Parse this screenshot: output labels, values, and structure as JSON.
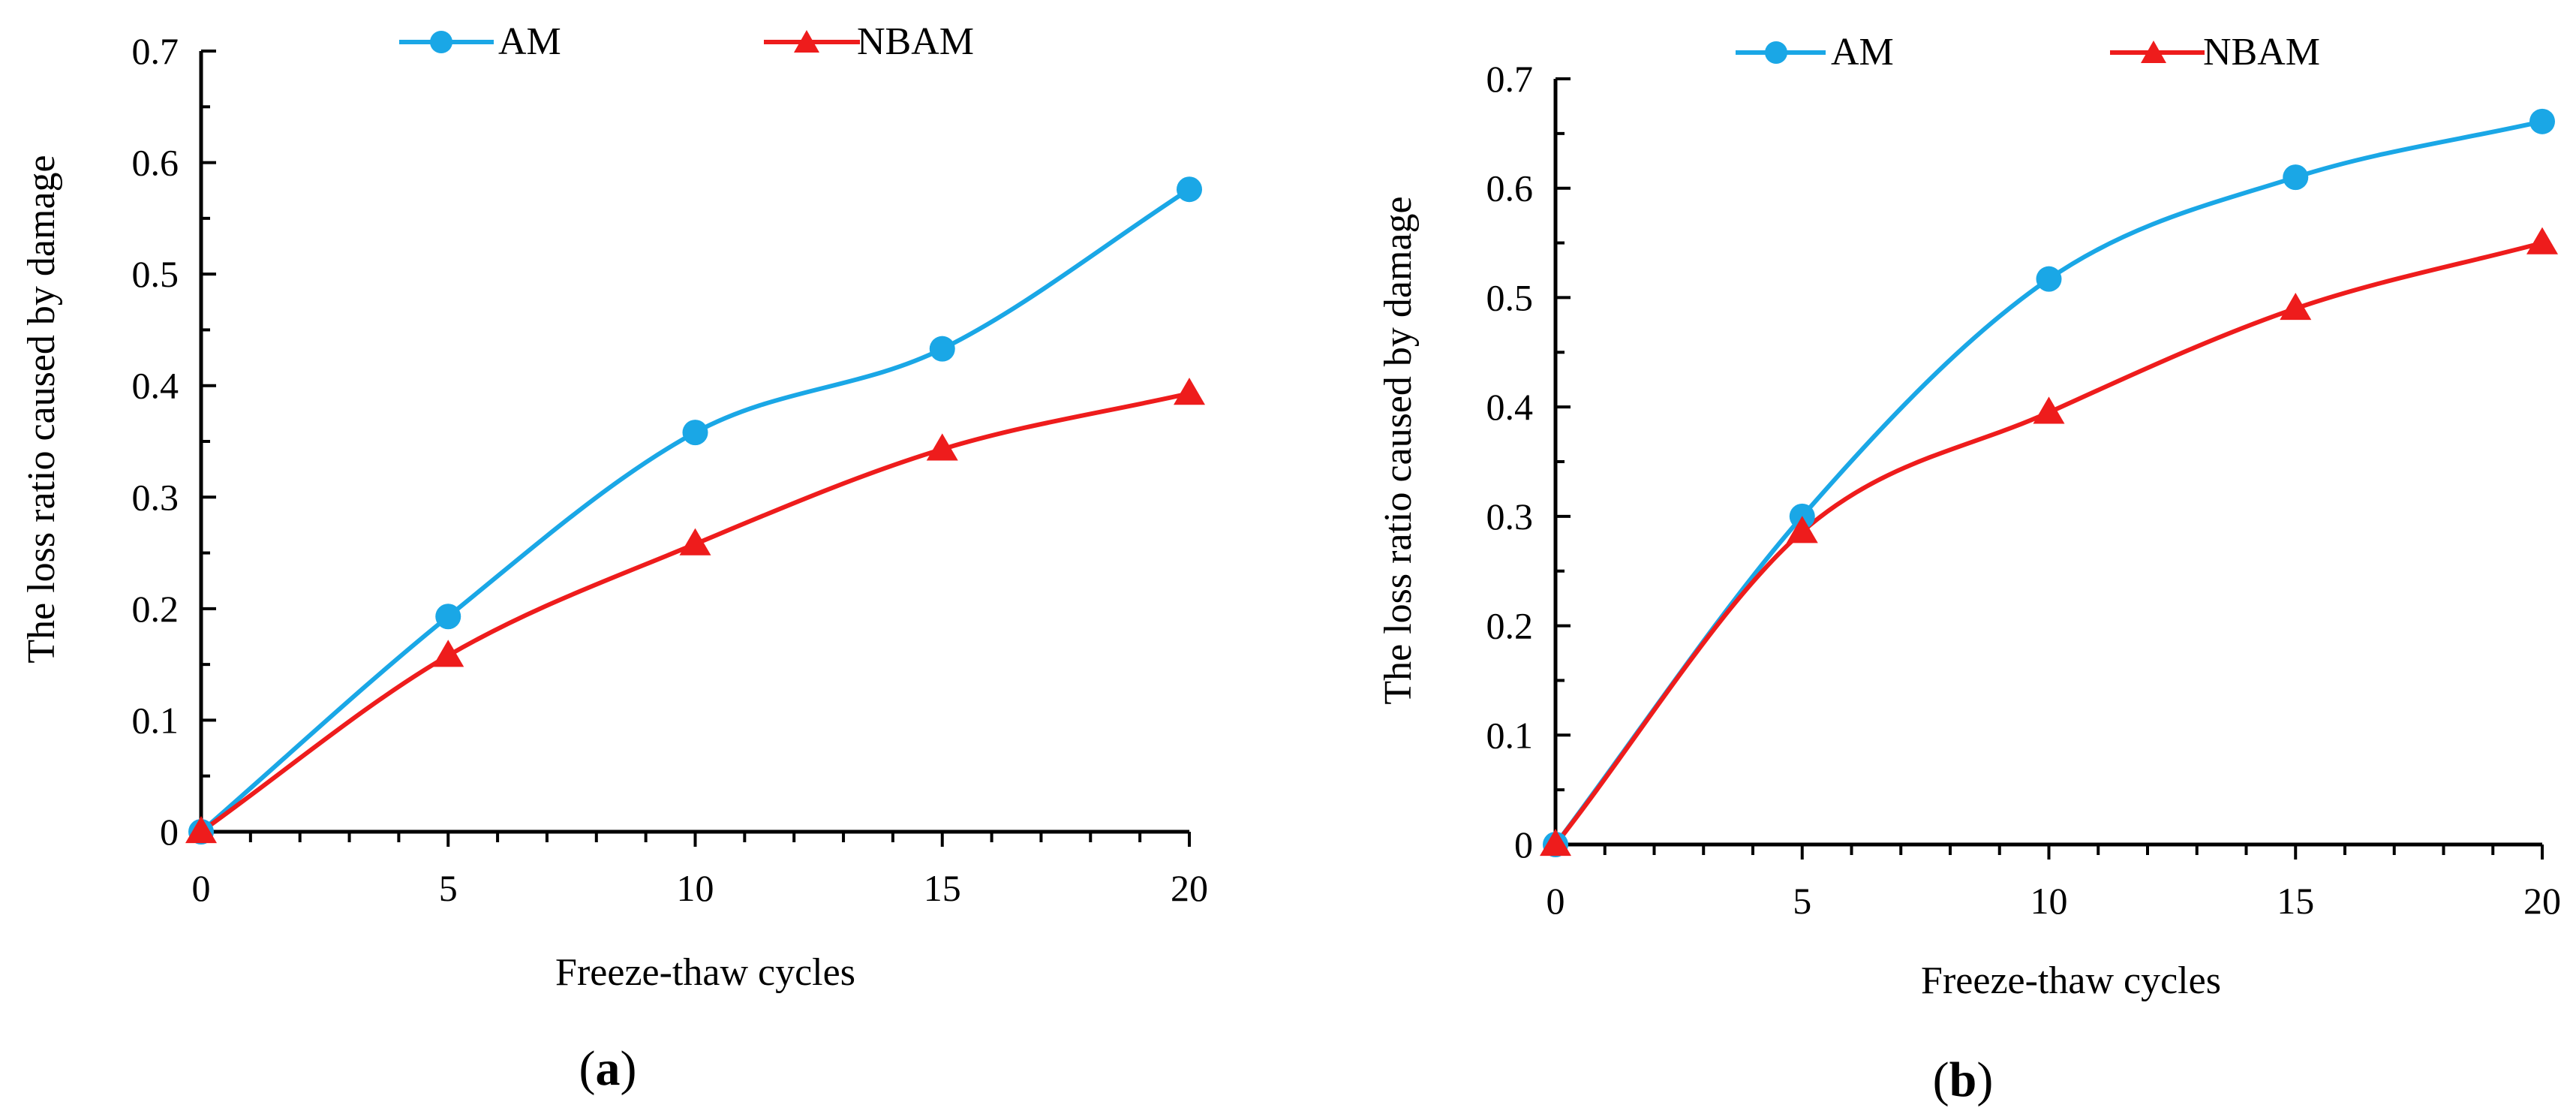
{
  "chart_data": [
    {
      "type": "line",
      "panel_label": "a",
      "xlabel": "Freeze-thaw  cycles",
      "ylabel": "The loss  ratio caused  by damage",
      "xlim": [
        0,
        20
      ],
      "ylim": [
        0,
        0.7
      ],
      "x_ticks": [
        0,
        5,
        10,
        15,
        20
      ],
      "y_ticks": [
        0,
        0.1,
        0.2,
        0.3,
        0.4,
        0.5,
        0.6,
        0.7
      ],
      "x_tick_labels": [
        "0",
        "5",
        "10",
        "15",
        "20"
      ],
      "y_tick_labels": [
        "0",
        "0.1",
        "0.2",
        "0.3",
        "0.4",
        "0.5",
        "0.6",
        "0.7"
      ],
      "x": [
        0,
        5,
        10,
        15,
        20
      ],
      "series": [
        {
          "name": "AM",
          "color": "#1aa7e6",
          "marker": "circle",
          "values": [
            0,
            0.193,
            0.358,
            0.433,
            0.576
          ]
        },
        {
          "name": "NBAM",
          "color": "#ee1c1c",
          "marker": "triangle",
          "values": [
            0,
            0.158,
            0.258,
            0.343,
            0.393
          ]
        }
      ]
    },
    {
      "type": "line",
      "panel_label": "b",
      "xlabel": "Freeze-thaw  cycles",
      "ylabel": "The loss  ratio caused  by damage",
      "xlim": [
        0,
        20
      ],
      "ylim": [
        0,
        0.7
      ],
      "x_ticks": [
        0,
        5,
        10,
        15,
        20
      ],
      "y_ticks": [
        0,
        0.1,
        0.2,
        0.3,
        0.4,
        0.5,
        0.6,
        0.7
      ],
      "x_tick_labels": [
        "0",
        "5",
        "10",
        "15",
        "20"
      ],
      "y_tick_labels": [
        "0",
        "0.1",
        "0.2",
        "0.3",
        "0.4",
        "0.5",
        "0.6",
        "0.7"
      ],
      "x": [
        0,
        5,
        10,
        15,
        20
      ],
      "series": [
        {
          "name": "AM",
          "color": "#1aa7e6",
          "marker": "circle",
          "values": [
            0,
            0.3,
            0.517,
            0.61,
            0.661
          ]
        },
        {
          "name": "NBAM",
          "color": "#ee1c1c",
          "marker": "triangle",
          "values": [
            0,
            0.286,
            0.395,
            0.49,
            0.55
          ]
        }
      ]
    }
  ]
}
